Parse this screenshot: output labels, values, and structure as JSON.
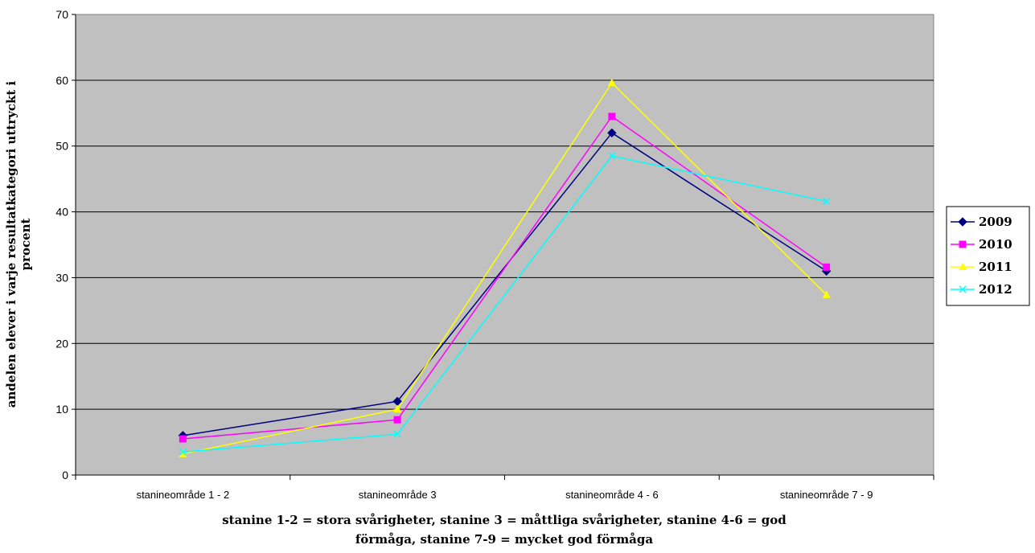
{
  "chart_data": {
    "type": "line",
    "title": "",
    "xlabel": "stanine 1-2 = stora svårigheter, stanine 3 = måttliga svårigheter, stanine 4-6 = god förmåga, stanine 7-9 = mycket god förmåga",
    "xlabel_lines": [
      "stanine 1-2 = stora svårigheter, stanine 3 = måttliga svårigheter, stanine 4-6 = god",
      "förmåga, stanine 7-9 = mycket god förmåga"
    ],
    "ylabel": "andelen elever i varje resultatkategori uttryckt i procent",
    "ylabel_lines": [
      "andelen elever i varje resultatkategori uttryckt i",
      "procent"
    ],
    "categories": [
      "stanineområde 1 - 2",
      "stanineområde 3",
      "stanineområde 4 - 6",
      "stanineområde 7 - 9"
    ],
    "ylim": [
      0,
      70
    ],
    "yticks": [
      0,
      10,
      20,
      30,
      40,
      50,
      60,
      70
    ],
    "grid": true,
    "legend_position": "right",
    "plot_background": "#c0c0c0",
    "series": [
      {
        "name": "2009",
        "values": [
          6.0,
          11.2,
          52.0,
          31.0
        ],
        "color": "#000080",
        "marker": "diamond"
      },
      {
        "name": "2010",
        "values": [
          5.5,
          8.4,
          54.5,
          31.6
        ],
        "color": "#ff00ff",
        "marker": "square"
      },
      {
        "name": "2011",
        "values": [
          3.2,
          10.0,
          59.6,
          27.4
        ],
        "color": "#ffff00",
        "marker": "triangle"
      },
      {
        "name": "2012",
        "values": [
          3.5,
          6.2,
          48.5,
          41.6
        ],
        "color": "#00ffff",
        "marker": "x"
      }
    ]
  }
}
